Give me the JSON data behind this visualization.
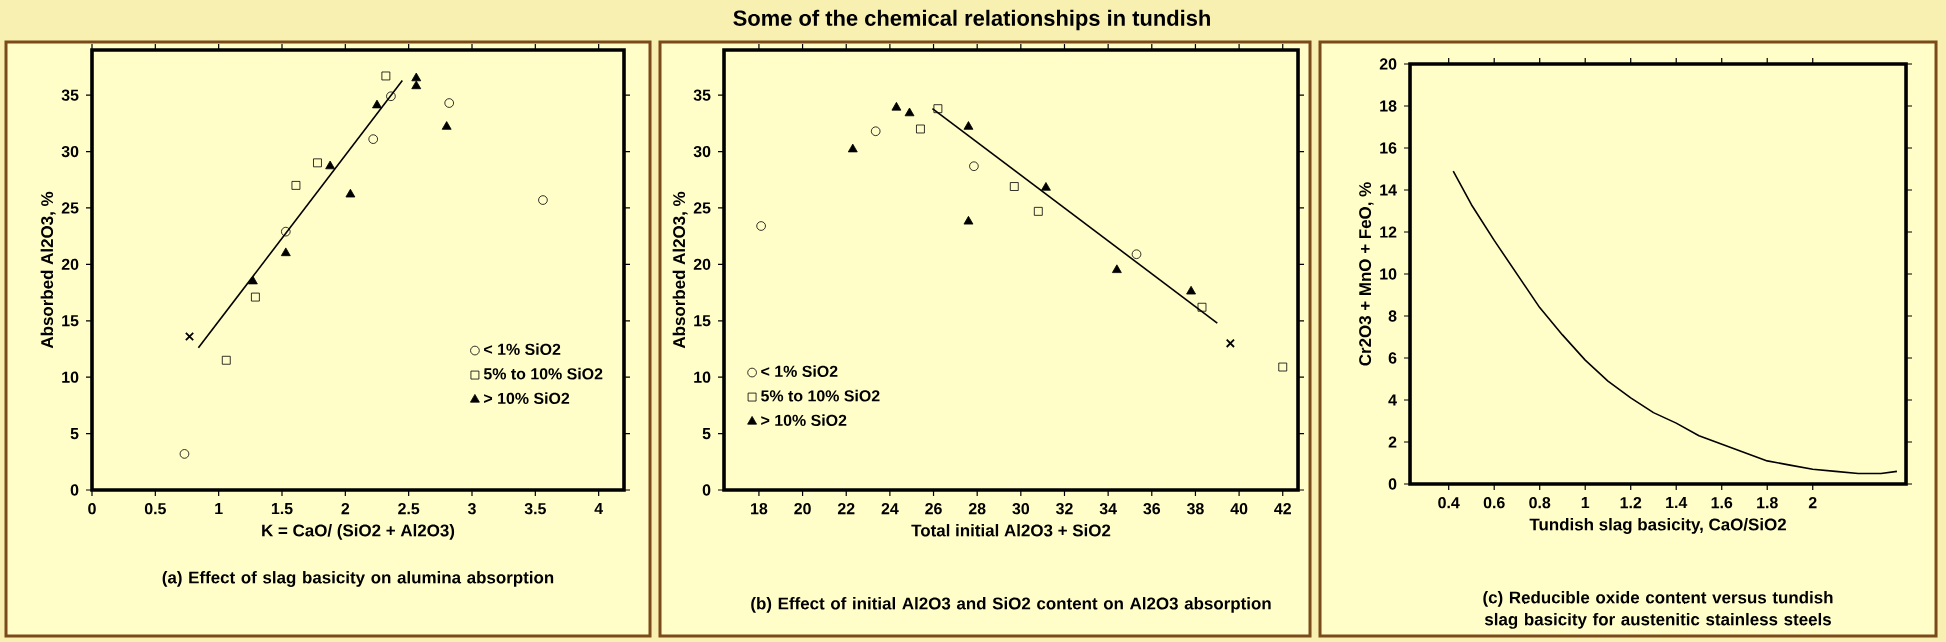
{
  "chart_data": [
    {
      "type": "scatter",
      "xlabel": "K = CaO/ (SiO2 + Al2O3)",
      "ylabel": "Absorbed Al2O3, %",
      "xlim": [
        0,
        4.2
      ],
      "ylim": [
        0,
        39
      ],
      "xticks": [
        0,
        0.5,
        1,
        1.5,
        2,
        2.5,
        3,
        3.5,
        4
      ],
      "yticks": [
        0,
        5,
        10,
        15,
        20,
        25,
        30,
        35
      ],
      "legend": "bottom right",
      "series": [
        {
          "name": "< 1%  SiO2",
          "color": "#000000",
          "marker": "circle",
          "x": [
            0.73,
            1.53,
            2.22,
            2.36,
            2.82,
            3.56
          ],
          "values": [
            3.2,
            22.9,
            31.1,
            34.9,
            34.3,
            25.7
          ]
        },
        {
          "name": "5% to 10% SiO2",
          "color": "#000000",
          "marker": "square",
          "x": [
            1.06,
            1.29,
            1.61,
            1.78,
            2.32
          ],
          "values": [
            11.5,
            17.1,
            27,
            29,
            36.7
          ]
        },
        {
          "name": "> 10% SiO2",
          "color": "#000000",
          "marker": "triangle",
          "x": [
            1.27,
            1.53,
            1.88,
            2.04,
            2.25,
            2.56,
            2.56,
            2.8
          ],
          "values": [
            18.5,
            21,
            28.7,
            26.2,
            34.1,
            36.5,
            35.8,
            32.2
          ]
        },
        {
          "type": "line",
          "color": "#000000",
          "x": [
            0.84,
            2.45
          ],
          "values": [
            12.6,
            36.3
          ]
        },
        {
          "color": "#000000",
          "marker": "cross",
          "x": [
            0.77
          ],
          "values": [
            13.6
          ]
        }
      ],
      "annotations": [
        "(a) Effect of slag basicity on alumina absorption"
      ]
    },
    {
      "type": "scatter",
      "title": "Some of the chemical relationships in tundish",
      "xlabel": "Total initial Al2O3 + SiO2",
      "ylabel": "Absorbed Al2O3, %",
      "xlim": [
        16.4,
        42.7
      ],
      "ylim": [
        0,
        39
      ],
      "xticks": [
        18,
        20,
        22,
        24,
        26,
        28,
        30,
        32,
        34,
        36,
        38,
        40,
        42
      ],
      "yticks": [
        0,
        5,
        10,
        15,
        20,
        25,
        30,
        35
      ],
      "legend": "bottom left",
      "series": [
        {
          "name": "< 1%  SiO2",
          "color": "#000000",
          "marker": "circle",
          "x": [
            18.1,
            23.35,
            27.85,
            35.3
          ],
          "values": [
            23.4,
            31.8,
            28.7,
            20.9
          ]
        },
        {
          "name": "5% to 10% SiO2",
          "color": "#000000",
          "marker": "square",
          "x": [
            25.4,
            26.2,
            29.7,
            30.8,
            38.3,
            42
          ],
          "values": [
            32,
            33.8,
            26.9,
            24.7,
            16.2,
            10.9
          ]
        },
        {
          "name": "> 10% SiO2",
          "color": "#000000",
          "marker": "triangle",
          "x": [
            22.3,
            24.3,
            24.9,
            27.6,
            27.6,
            31.15,
            34.4,
            37.8
          ],
          "values": [
            30.2,
            33.9,
            33.4,
            32.2,
            23.8,
            26.8,
            19.5,
            17.6
          ]
        },
        {
          "type": "line",
          "color": "#000000",
          "x": [
            25.95,
            39
          ],
          "values": [
            33.8,
            14.8
          ]
        },
        {
          "color": "#000000",
          "marker": "cross",
          "x": [
            39.6
          ],
          "values": [
            13
          ]
        }
      ],
      "annotations": [
        "(b) Effect of initial Al2O3 and SiO2 content on Al2O3 absorption"
      ]
    },
    {
      "type": "line",
      "xlabel": "Tundish slag basicity, CaO/SiO2",
      "ylabel": "Cr2O3 + MnO + FeO, %",
      "xlim": [
        0.23,
        2.41
      ],
      "ylim": [
        0,
        20
      ],
      "xticks": [
        0.4,
        0.6,
        0.8,
        1,
        1.2,
        1.4,
        1.6,
        1.8,
        2
      ],
      "yticks": [
        0,
        2,
        4,
        6,
        8,
        10,
        12,
        14,
        16,
        18,
        20
      ],
      "series": [
        {
          "color": "#000000",
          "x": [
            0.42,
            0.5,
            0.6,
            0.7,
            0.8,
            0.9,
            1.0,
            1.1,
            1.2,
            1.3,
            1.4,
            1.5,
            1.6,
            1.7,
            1.8,
            1.9,
            2.0,
            2.1,
            2.2,
            2.3,
            2.37
          ],
          "values": [
            14.9,
            13.3,
            11.6,
            10.0,
            8.4,
            7.1,
            5.9,
            4.9,
            4.1,
            3.4,
            2.9,
            2.3,
            1.9,
            1.5,
            1.1,
            0.9,
            0.7,
            0.6,
            0.5,
            0.5,
            0.6
          ]
        }
      ],
      "annotations": [
        "(c) Reducible oxide content versus tundish slag basicity for austenitic stainless steels"
      ]
    }
  ]
}
